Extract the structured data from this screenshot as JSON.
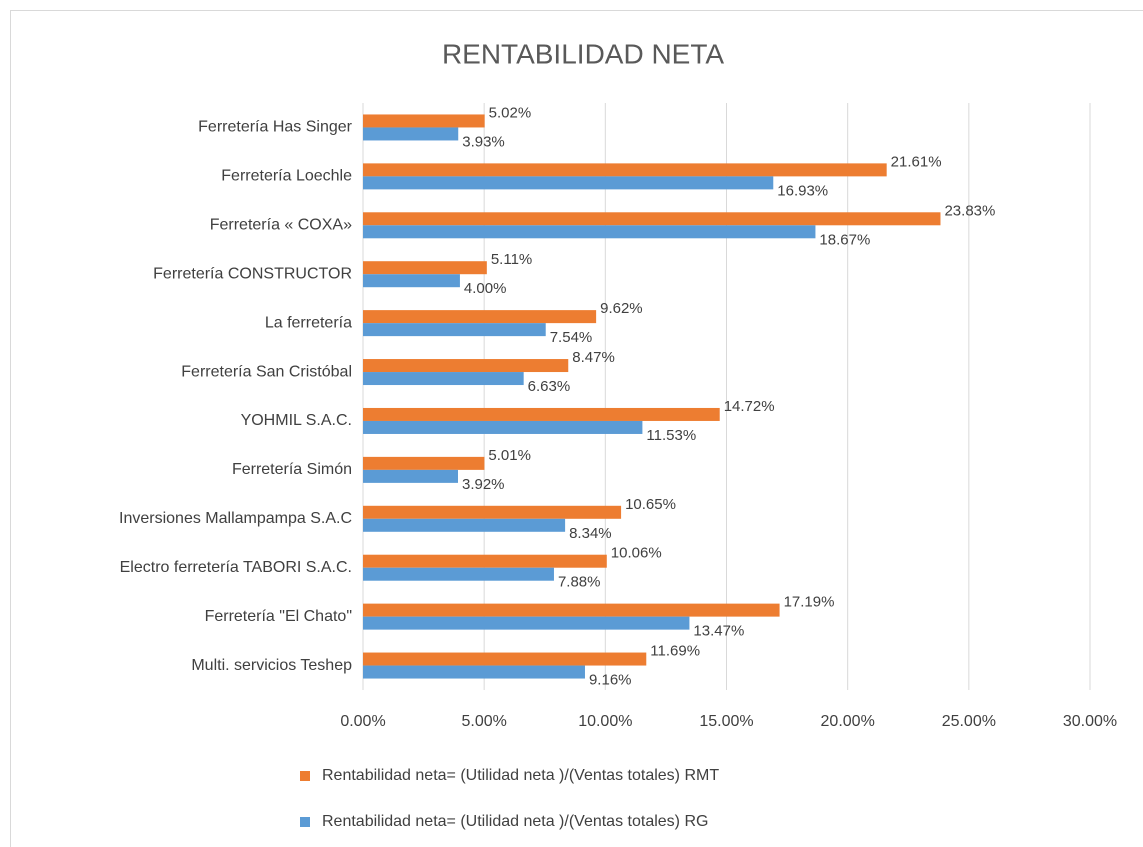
{
  "chart_data": {
    "type": "bar",
    "orientation": "horizontal",
    "title": "RENTABILIDAD NETA",
    "categories": [
      "Ferretería Has Singer",
      "Ferretería Loechle",
      "Ferretería « COXA»",
      "Ferretería CONSTRUCTOR",
      "La ferretería",
      "Ferretería San Cristóbal",
      "YOHMIL S.A.C.",
      "Ferretería Simón",
      "Inversiones Mallampampa S.A.C",
      "Electro ferretería TABORI S.A.C.",
      "Ferretería \"El Chato\"",
      "Multi. servicios Teshep"
    ],
    "series": [
      {
        "name": "Rentabilidad neta= (Utilidad neta )/(Ventas totales) RMT",
        "color": "#ed7d31",
        "values": [
          5.02,
          21.61,
          23.83,
          5.11,
          9.62,
          8.47,
          14.72,
          5.01,
          10.65,
          10.06,
          17.19,
          11.69
        ],
        "value_labels": [
          "5.02%",
          "21.61%",
          "23.83%",
          "5.11%",
          "9.62%",
          "8.47%",
          "14.72%",
          "5.01%",
          "10.65%",
          "10.06%",
          "17.19%",
          "11.69%"
        ]
      },
      {
        "name": "Rentabilidad neta= (Utilidad neta )/(Ventas totales) RG",
        "color": "#5b9bd5",
        "values": [
          3.93,
          16.93,
          18.67,
          4.0,
          7.54,
          6.63,
          11.53,
          3.92,
          8.34,
          7.88,
          13.47,
          9.16
        ],
        "value_labels": [
          "3.93%",
          "16.93%",
          "18.67%",
          "4.00%",
          "7.54%",
          "6.63%",
          "11.53%",
          "3.92%",
          "8.34%",
          "7.88%",
          "13.47%",
          "9.16%"
        ]
      }
    ],
    "xlim": [
      0,
      30
    ],
    "xticks": [
      {
        "value": 0,
        "label": "0.00%"
      },
      {
        "value": 5,
        "label": "5.00%"
      },
      {
        "value": 10,
        "label": "10.00%"
      },
      {
        "value": 15,
        "label": "15.00%"
      },
      {
        "value": 20,
        "label": "20.00%"
      },
      {
        "value": 25,
        "label": "25.00%"
      },
      {
        "value": 30,
        "label": "30.00%"
      }
    ],
    "grid": true,
    "legend": "bottom"
  }
}
